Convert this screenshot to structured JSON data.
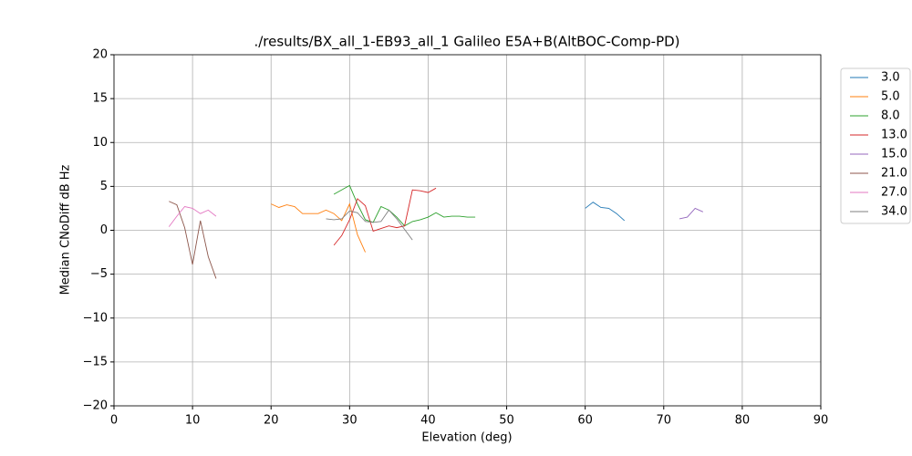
{
  "chart_data": {
    "type": "line",
    "title": "./results/BX_all_1-EB93_all_1 Galileo E5A+B(AltBOC-Comp-PD)",
    "x_label": "Elevation (deg)",
    "y_label": "Median CNoDiff dB Hz",
    "xlim": [
      0,
      90
    ],
    "xticks": [
      0,
      10,
      20,
      30,
      40,
      50,
      60,
      70,
      80,
      90
    ],
    "ylim": [
      -20,
      20
    ],
    "yticks": [
      {
        "value": -20,
        "label": "−20"
      },
      {
        "value": -15,
        "label": "−15"
      },
      {
        "value": -10,
        "label": "−10"
      },
      {
        "value": -5,
        "label": "−5"
      },
      0,
      5,
      10,
      15,
      20
    ],
    "grid": true,
    "legend": "outside right",
    "series": [
      {
        "name": "3.0",
        "color": "#1f77b4",
        "x": [
          60,
          61,
          62,
          63,
          64,
          65
        ],
        "values": [
          2.5,
          3.2,
          2.6,
          2.5,
          1.9,
          1.1
        ]
      },
      {
        "name": "5.0",
        "color": "#ff7f0e",
        "x": [
          20,
          21,
          22,
          23,
          24,
          25,
          26,
          27,
          28,
          29,
          30,
          31,
          32
        ],
        "values": [
          3.0,
          2.6,
          2.9,
          2.7,
          1.9,
          1.9,
          1.9,
          2.3,
          1.9,
          1.1,
          3.0,
          -0.5,
          -2.5
        ]
      },
      {
        "name": "8.0",
        "color": "#2ca02c",
        "x": [
          28,
          30,
          31,
          32,
          33,
          34,
          35,
          36,
          37,
          38,
          39,
          40,
          41,
          42,
          43,
          44,
          45,
          46
        ],
        "values": [
          4.1,
          5.1,
          3.0,
          1.2,
          0.9,
          2.7,
          2.3,
          1.5,
          0.5,
          1.0,
          1.2,
          1.5,
          2.0,
          1.5,
          1.6,
          1.6,
          1.5,
          1.5
        ]
      },
      {
        "name": "13.0",
        "color": "#d62728",
        "x": [
          28,
          29,
          30,
          31,
          32,
          33,
          34,
          35,
          36,
          37,
          38,
          39,
          40,
          41
        ],
        "values": [
          -1.7,
          -0.6,
          1.2,
          3.6,
          2.8,
          -0.1,
          0.2,
          0.5,
          0.3,
          0.5,
          4.6,
          4.5,
          4.3,
          4.8
        ]
      },
      {
        "name": "15.0",
        "color": "#9467bd",
        "x": [
          72,
          73,
          74,
          75
        ],
        "values": [
          1.3,
          1.5,
          2.5,
          2.1
        ]
      },
      {
        "name": "21.0",
        "color": "#8c564b",
        "x": [
          7,
          8,
          9,
          10,
          11,
          12,
          13
        ],
        "values": [
          3.3,
          2.9,
          0.3,
          -3.9,
          1.1,
          -3.0,
          -5.5
        ]
      },
      {
        "name": "27.0",
        "color": "#e377c2",
        "x": [
          7,
          8,
          9,
          10,
          11,
          12,
          13
        ],
        "values": [
          0.4,
          1.6,
          2.7,
          2.5,
          1.9,
          2.3,
          1.6
        ]
      },
      {
        "name": "34.0",
        "color": "#7f7f7f",
        "x": [
          27,
          28,
          29,
          30,
          31,
          32,
          33,
          34,
          35,
          36,
          37,
          38
        ],
        "values": [
          1.3,
          1.2,
          1.3,
          2.2,
          2.0,
          1.0,
          0.9,
          1.0,
          2.3,
          1.3,
          0.1,
          -1.1
        ]
      }
    ]
  }
}
